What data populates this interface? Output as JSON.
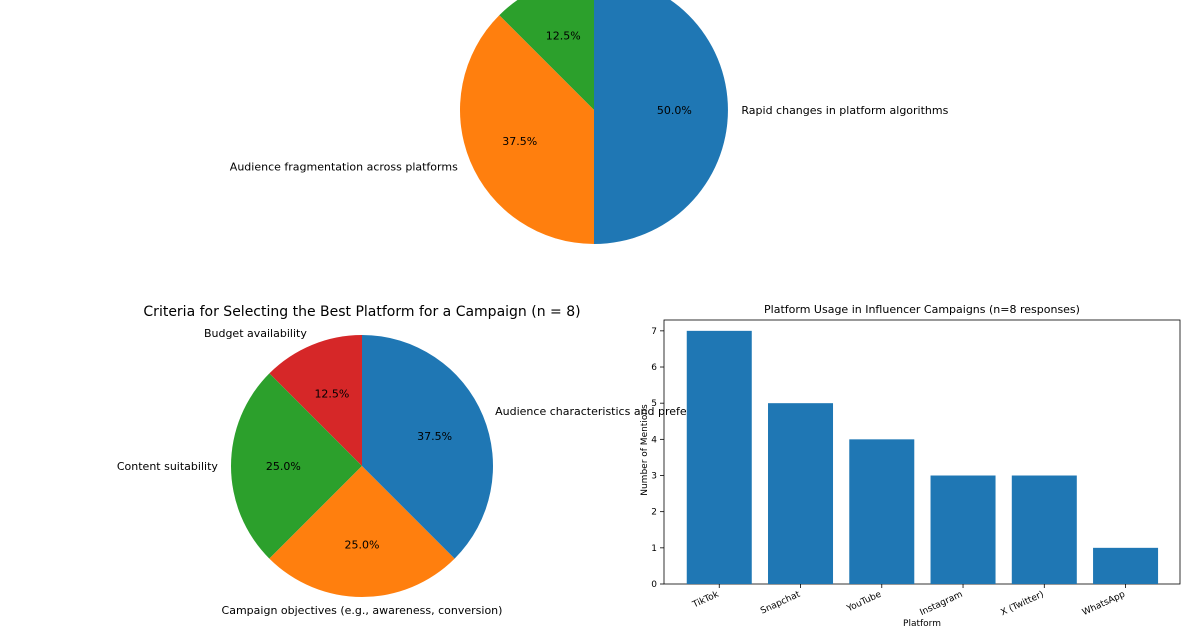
{
  "chart_data": [
    {
      "type": "pie",
      "title": "",
      "categories": [
        "Budget availability",
        "Audience fragmentation across platforms",
        "Rapid changes in platform algorithms"
      ],
      "values": [
        12.5,
        37.5,
        50.0
      ],
      "labels": [
        "12.5%",
        "37.5%",
        "50.0%"
      ],
      "colors": [
        "#2ca02c",
        "#ff7f0e",
        "#1f77b4"
      ],
      "visible_labels": [
        "",
        "Audience fragmentation across platforms",
        "Rapid changes in platform algorithms"
      ]
    },
    {
      "type": "pie",
      "title": "Criteria for Selecting the Best Platform for a Campaign (n = 8)",
      "categories": [
        "Budget availability",
        "Content suitability",
        "Campaign objectives (e.g., awareness, conversion)",
        "Audience characteristics and preferences"
      ],
      "values": [
        12.5,
        25.0,
        25.0,
        37.5
      ],
      "labels": [
        "12.5%",
        "25.0%",
        "25.0%",
        "37.5%"
      ],
      "colors": [
        "#d62728",
        "#2ca02c",
        "#ff7f0e",
        "#1f77b4"
      ]
    },
    {
      "type": "bar",
      "title": "Platform Usage in Influencer Campaigns (n=8 responses)",
      "categories": [
        "TikTok",
        "Snapchat",
        "YouTube",
        "Instagram",
        "X (Twitter)",
        "WhatsApp"
      ],
      "values": [
        7,
        5,
        4,
        3,
        3,
        1
      ],
      "xlabel": "Platform",
      "ylabel": "Number of Mentions",
      "ylim": [
        0,
        7.3
      ],
      "yticks": [
        "0",
        "1",
        "2",
        "3",
        "4",
        "5",
        "6",
        "7"
      ],
      "color": "#1f77b4",
      "grid": false
    }
  ]
}
